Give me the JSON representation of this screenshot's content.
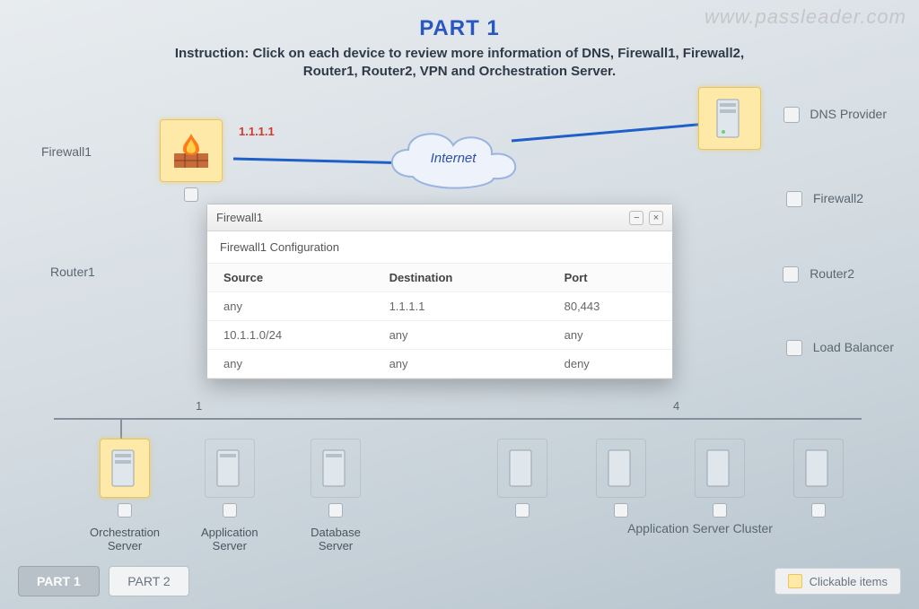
{
  "watermark": "www.passleader.com",
  "header": {
    "title": "PART 1",
    "instruction_line1": "Instruction: Click on each device to review more information of DNS, Firewall1, Firewall2,",
    "instruction_line2": "Router1, Router2, VPN and Orchestration Server."
  },
  "side_labels": {
    "firewall1": "Firewall1",
    "router1": "Router1",
    "dns_provider": "DNS Provider",
    "firewall2": "Firewall2",
    "router2": "Router2",
    "load_balancer": "Load Balancer"
  },
  "ip_labels": {
    "firewall1": "1.1.1.1"
  },
  "cloud_label": "Internet",
  "axis": {
    "left_num": "1",
    "right_num": "4"
  },
  "bottom_nodes": {
    "orchestration": "Orchestration\nServer",
    "app_server": "Application\nServer",
    "db_server": "Database\nServer",
    "cluster": "Application Server Cluster"
  },
  "dialog": {
    "title": "Firewall1",
    "subtitle": "Firewall1 Configuration",
    "columns": [
      "Source",
      "Destination",
      "Port"
    ],
    "rows": [
      [
        "any",
        "1.1.1.1",
        "80,443"
      ],
      [
        "10.1.1.0/24",
        "any",
        "any"
      ],
      [
        "any",
        "any",
        "deny"
      ]
    ]
  },
  "footer": {
    "tab1": "PART 1",
    "tab2": "PART 2",
    "legend": "Clickable items"
  },
  "colors": {
    "accent_blue": "#2a56c2",
    "line_blue": "#1f5fc8",
    "highlight_bg": "#ffe9a8",
    "highlight_border": "#e9c659",
    "ip_red": "#d23b2a"
  }
}
